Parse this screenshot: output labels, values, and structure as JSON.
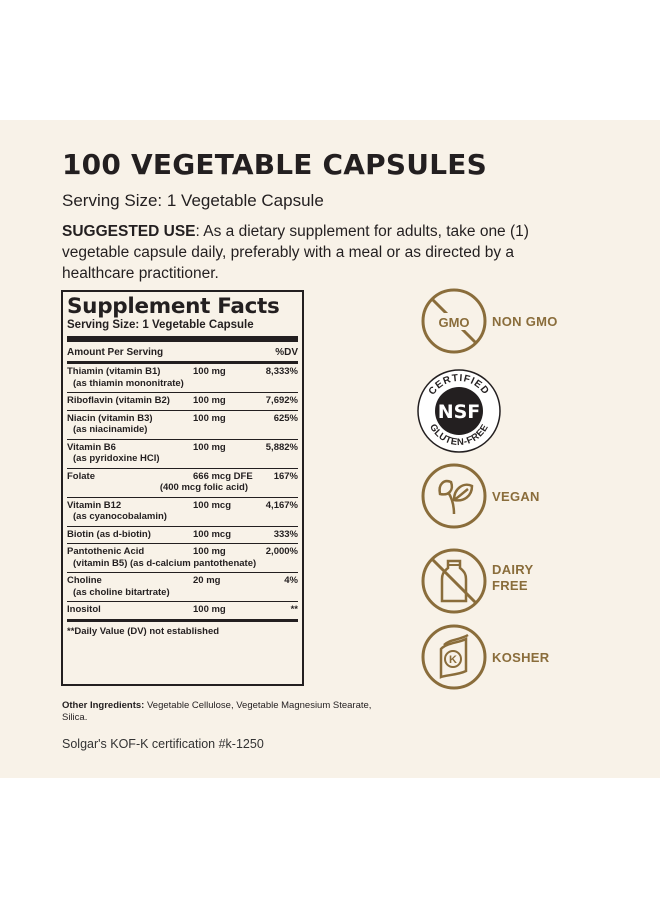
{
  "title": "100 VEGETABLE CAPSULES",
  "serving_size": "Serving Size: 1 Vegetable Capsule",
  "suggested_use": {
    "label": "SUGGESTED USE",
    "text": ": As a dietary supplement for adults, take one (1) vegetable capsule daily, preferably with a meal or as directed by a healthcare practitioner."
  },
  "facts": {
    "heading": "Supplement Facts",
    "serving": "Serving Size: 1 Vegetable Capsule",
    "amount_header": "Amount Per Serving",
    "dv_header": "%DV",
    "rows": [
      {
        "name": "Thiamin (vitamin B1)",
        "amount": "100 mg",
        "dv": "8,333%",
        "sub": "(as thiamin mononitrate)"
      },
      {
        "name": "Riboflavin (vitamin B2)",
        "amount": "100 mg",
        "dv": "7,692%",
        "sub": ""
      },
      {
        "name": "Niacin (vitamin B3)",
        "amount": "100 mg",
        "dv": "625%",
        "sub": "(as niacinamide)"
      },
      {
        "name": "Vitamin B6",
        "amount": "100 mg",
        "dv": "5,882%",
        "sub": "(as pyridoxine HCl)"
      },
      {
        "name": "Folate",
        "amount": "666 mcg DFE",
        "dv": "167%",
        "sub": "(400 mcg folic acid)"
      },
      {
        "name": "Vitamin B12",
        "amount": "100 mcg",
        "dv": "4,167%",
        "sub": "(as cyanocobalamin)"
      },
      {
        "name": "Biotin (as d-biotin)",
        "amount": "100 mcg",
        "dv": "333%",
        "sub": ""
      },
      {
        "name": "Pantothenic Acid",
        "amount": "100 mg",
        "dv": "2,000%",
        "sub": "(vitamin B5) (as d-calcium pantothenate)"
      },
      {
        "name": "Choline",
        "amount": "20 mg",
        "dv": "4%",
        "sub": "(as choline bitartrate)"
      },
      {
        "name": "Inositol",
        "amount": "100 mg",
        "dv": "**",
        "sub": ""
      }
    ],
    "footnote": "**Daily Value (DV) not established"
  },
  "other_ingredients": {
    "label": "Other Ingredients:",
    "text": " Vegetable Cellulose, Vegetable Magnesium Stearate, Silica."
  },
  "certification": "Solgar's KOF-K certification #k-1250",
  "badges": {
    "non_gmo": {
      "icon_text": "GMO",
      "label": "NON GMO"
    },
    "nsf": {
      "top": "CERTIFIED",
      "center": "NSF",
      "bottom": "GLUTEN-FREE"
    },
    "vegan": {
      "label": "VEGAN"
    },
    "dairy_free": {
      "label1": "DAIRY",
      "label2": "FREE"
    },
    "kosher": {
      "icon_text": "K",
      "label": "KOSHER"
    }
  },
  "colors": {
    "gold": "#8a6d3b",
    "panel": "#f8f2e8",
    "text": "#231f20"
  }
}
